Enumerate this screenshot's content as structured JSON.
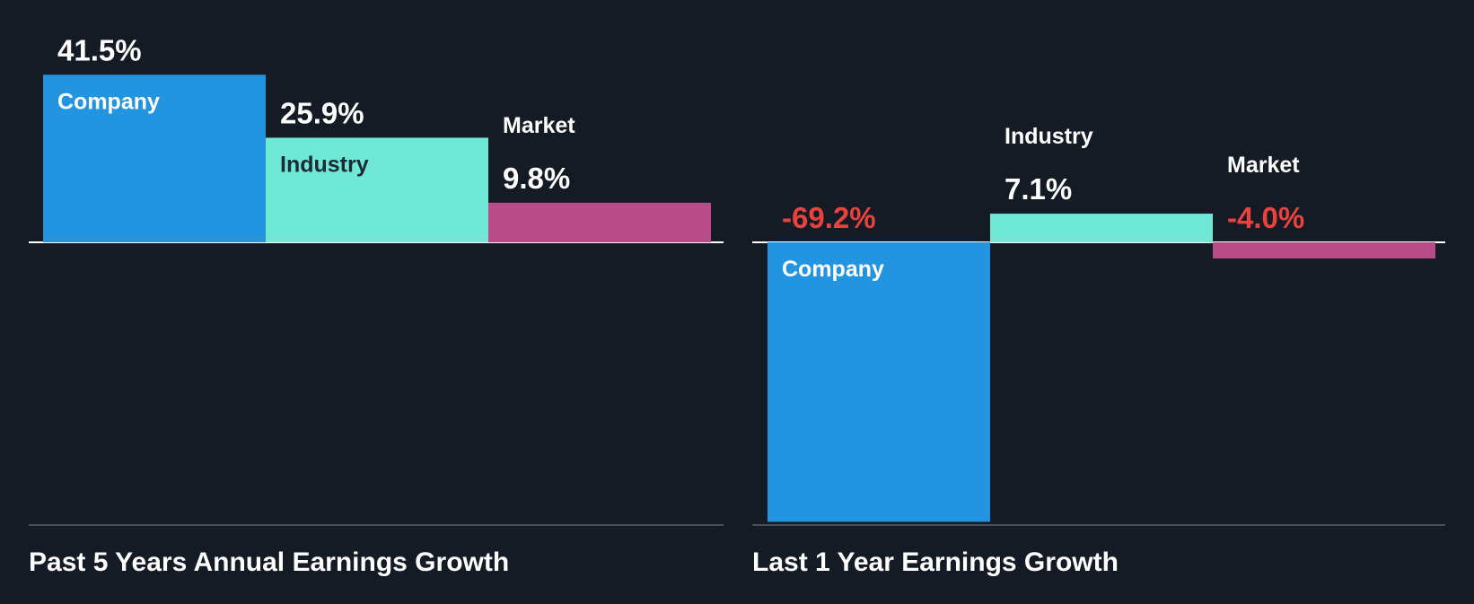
{
  "colors": {
    "background": "#151b24",
    "company": "#2394e0",
    "industry": "#6fe8d6",
    "market": "#b94b88",
    "positive_text": "#ffffff",
    "negative_text": "#e8423f",
    "inside_label_on_blue": "#ffffff",
    "inside_label_on_teal": "#1f2a37",
    "baseline": "#ffffff",
    "bottom_rule": "#4a505a"
  },
  "chart_data": [
    {
      "type": "bar",
      "title": "Past 5 Years Annual Earnings Growth",
      "categories": [
        "Company",
        "Industry",
        "Market"
      ],
      "values": [
        41.5,
        25.9,
        9.8
      ],
      "value_labels": [
        "41.5%",
        "25.9%",
        "9.8%"
      ],
      "unit": "%",
      "grid": false,
      "legend": "none"
    },
    {
      "type": "bar",
      "title": "Last 1 Year Earnings Growth",
      "categories": [
        "Company",
        "Industry",
        "Market"
      ],
      "values": [
        -69.2,
        7.1,
        -4.0
      ],
      "value_labels": [
        "-69.2%",
        "7.1%",
        "-4.0%"
      ],
      "unit": "%",
      "grid": false,
      "legend": "none"
    }
  ]
}
